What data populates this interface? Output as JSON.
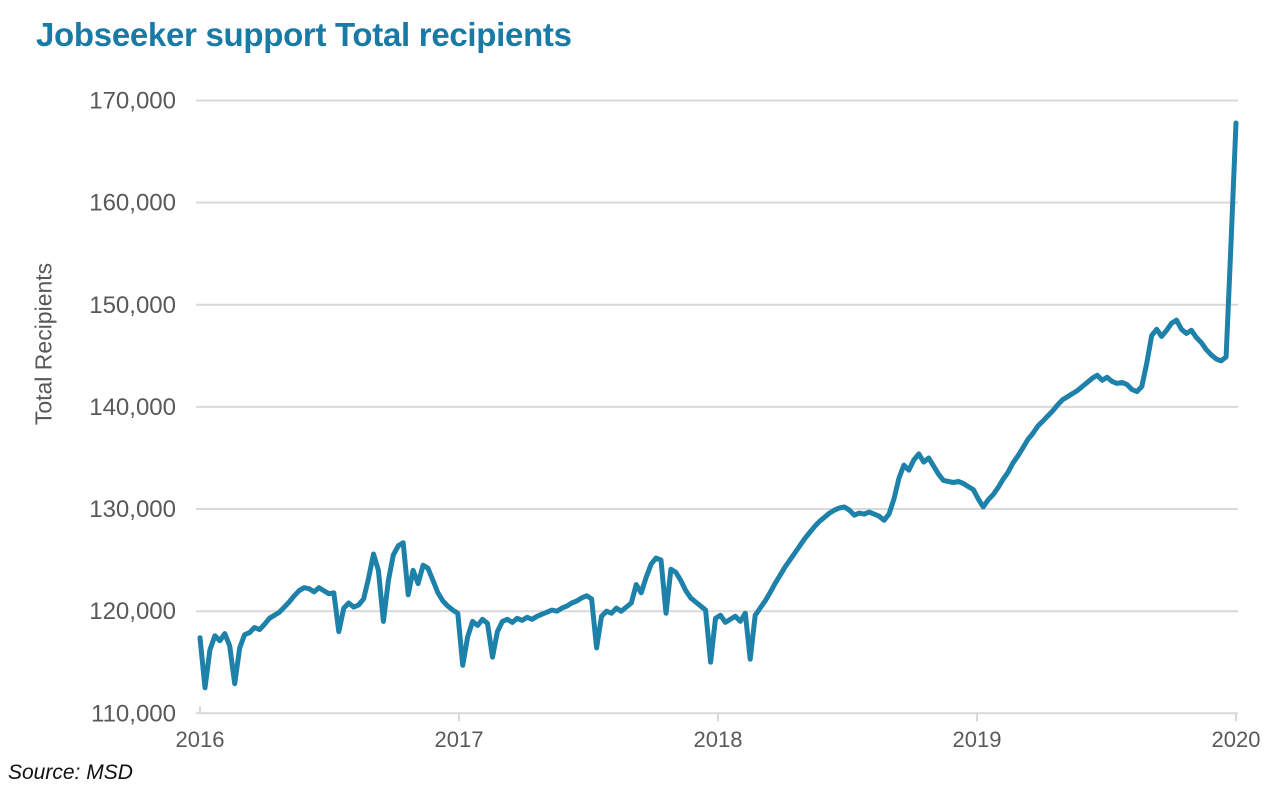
{
  "title": "Jobseeker support Total recipients",
  "source_note": "Source: MSD",
  "colors": {
    "title_text": "#187aa5",
    "line": "#1d81a9",
    "grid": "#d9d9d9",
    "axis_text": "#595959",
    "source_text": "#111111",
    "background": "#ffffff"
  },
  "chart_data": {
    "type": "line",
    "title": "Jobseeker support Total recipients",
    "xlabel": "",
    "ylabel": "Total Recipients",
    "legend": "none",
    "grid": "horizontal",
    "frequency": "weekly",
    "x_range": [
      "2016-01",
      "2020-01"
    ],
    "x_ticks": [
      "2016",
      "2017",
      "2018",
      "2019",
      "2020"
    ],
    "y_ticks": [
      "170,000",
      "160,000",
      "150,000",
      "140,000",
      "130,000",
      "120,000",
      "110,000"
    ],
    "ylim": [
      110000,
      170000
    ],
    "series": [
      {
        "name": "Jobseeker Support total recipients",
        "values": [
          117400,
          112500,
          116200,
          117600,
          117100,
          117800,
          116600,
          112900,
          116400,
          117700,
          117900,
          118400,
          118200,
          118700,
          119300,
          119600,
          119900,
          120400,
          120900,
          121500,
          122000,
          122300,
          122200,
          121900,
          122300,
          122000,
          121700,
          121800,
          118000,
          120300,
          120800,
          120400,
          120600,
          121200,
          123200,
          125600,
          124000,
          119000,
          123000,
          125500,
          126400,
          126700,
          121600,
          124000,
          122700,
          124500,
          124200,
          123000,
          121800,
          121000,
          120500,
          120100,
          119800,
          114700,
          117500,
          119000,
          118600,
          119200,
          118800,
          115500,
          118000,
          119000,
          119200,
          118900,
          119300,
          119100,
          119400,
          119200,
          119500,
          119700,
          119900,
          120100,
          120000,
          120300,
          120500,
          120800,
          121000,
          121300,
          121500,
          121200,
          116400,
          119500,
          120000,
          119800,
          120300,
          120000,
          120400,
          120800,
          122600,
          121800,
          123300,
          124600,
          125200,
          125000,
          119800,
          124100,
          123800,
          123000,
          122000,
          121300,
          120900,
          120500,
          120100,
          115000,
          119300,
          119600,
          118900,
          119200,
          119500,
          119000,
          119800,
          115300,
          119600,
          120300,
          121000,
          121800,
          122700,
          123500,
          124300,
          125000,
          125700,
          126400,
          127100,
          127700,
          128300,
          128800,
          129200,
          129600,
          129900,
          130100,
          130200,
          129900,
          129400,
          129600,
          129500,
          129700,
          129500,
          129300,
          128900,
          129500,
          131000,
          133000,
          134300,
          133800,
          134800,
          135400,
          134600,
          135000,
          134200,
          133400,
          132800,
          132700,
          132600,
          132700,
          132500,
          132200,
          131900,
          131000,
          130200,
          130900,
          131400,
          132100,
          132900,
          133600,
          134500,
          135200,
          136000,
          136800,
          137400,
          138100,
          138600,
          139100,
          139600,
          140200,
          140700,
          141000,
          141300,
          141600,
          142000,
          142400,
          142800,
          143100,
          142600,
          142900,
          142500,
          142300,
          142400,
          142200,
          141700,
          141500,
          142000,
          144300,
          147000,
          147600,
          146900,
          147500,
          148200,
          148500,
          147600,
          147200,
          147500,
          146800,
          146300,
          145600,
          145100,
          144700,
          144500,
          144900,
          156000,
          167800
        ]
      }
    ]
  }
}
